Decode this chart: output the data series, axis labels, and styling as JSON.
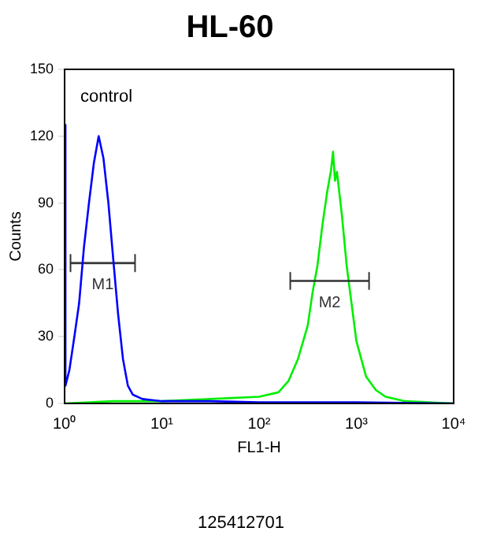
{
  "chart_data": {
    "type": "line",
    "title": "HL-60",
    "xlabel": "FL1-H",
    "ylabel": "Counts",
    "log": "x",
    "xlim": [
      1,
      10000
    ],
    "xticks": [
      {
        "value": 1,
        "label": "10⁰"
      },
      {
        "value": 10,
        "label": "10¹"
      },
      {
        "value": 100,
        "label": "10²"
      },
      {
        "value": 1000,
        "label": "10³"
      },
      {
        "value": 10000,
        "label": "10⁴"
      }
    ],
    "ylim": [
      0,
      150
    ],
    "yticks": [
      0,
      30,
      60,
      90,
      120,
      150
    ],
    "grid": false,
    "legend": false,
    "marker": "none",
    "series": [
      {
        "color": "#0000ff",
        "x": [
          1,
          1.02,
          1.12,
          1.26,
          1.41,
          1.58,
          1.78,
          2.0,
          2.24,
          2.51,
          2.82,
          3.16,
          3.55,
          3.98,
          4.47,
          5.01,
          6.31,
          10,
          31.6,
          100,
          1000,
          10000
        ],
        "values": [
          125,
          8,
          15,
          30,
          45,
          70,
          90,
          108,
          120,
          110,
          90,
          65,
          40,
          20,
          8,
          4,
          2,
          1,
          1,
          0.5,
          0.5,
          0
        ]
      },
      {
        "name": "M1",
        "color": "#333333",
        "x": [
          1.15,
          5.3
        ],
        "values": [
          63,
          63
        ],
        "errors": [
          4,
          4
        ]
      },
      {
        "name": "M2",
        "color": "#333333",
        "x": [
          209,
          1350
        ],
        "values": [
          55,
          55
        ],
        "errors": [
          4,
          4
        ]
      },
      {
        "color": "#00ee00",
        "x": [
          1,
          3.16,
          10,
          31.6,
          100,
          158,
          200,
          251,
          316,
          355,
          398,
          447,
          501,
          550,
          575,
          603,
          631,
          708,
          794,
          891,
          1000,
          1259,
          1585,
          1995,
          3162,
          10000
        ],
        "values": [
          0,
          1,
          1,
          2,
          3,
          5,
          10,
          20,
          35,
          50,
          62,
          80,
          95,
          105,
          113,
          100,
          104,
          85,
          62,
          45,
          28,
          12,
          6,
          3,
          1,
          0
        ]
      }
    ],
    "annotations": [
      "control",
      "125412701"
    ]
  }
}
